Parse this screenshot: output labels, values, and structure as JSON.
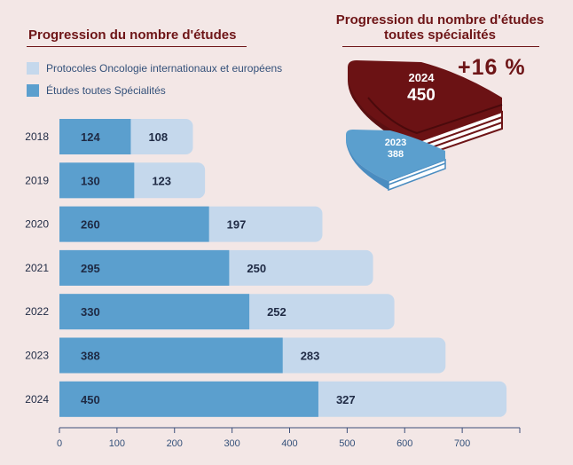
{
  "left_title": "Progression du nombre d'études",
  "right_title_line1": "Progression du nombre d'études",
  "right_title_line2": "toutes spécialités",
  "growth": "+16 %",
  "books": [
    {
      "year": "2024",
      "value": "450"
    },
    {
      "year": "2023",
      "value": "388"
    }
  ],
  "colors": {
    "dark": "#5b9fce",
    "light": "#c5d8ec",
    "brand": "#6e1517",
    "bg": "#f3e7e6"
  },
  "chart_data": {
    "type": "bar",
    "orientation": "horizontal",
    "stacked": true,
    "categories": [
      "2018",
      "2019",
      "2020",
      "2021",
      "2022",
      "2023",
      "2024"
    ],
    "series": [
      {
        "name": "Études toutes Spécialités",
        "values": [
          124,
          130,
          260,
          295,
          330,
          388,
          450
        ]
      },
      {
        "name": "Protocoles Oncologie internationaux et européens",
        "values": [
          108,
          123,
          197,
          250,
          252,
          283,
          327
        ]
      }
    ],
    "xticks": [
      0,
      100,
      200,
      300,
      400,
      500,
      600,
      700
    ],
    "xlim": [
      0,
      800
    ],
    "legend": "top-left",
    "grid": false
  }
}
